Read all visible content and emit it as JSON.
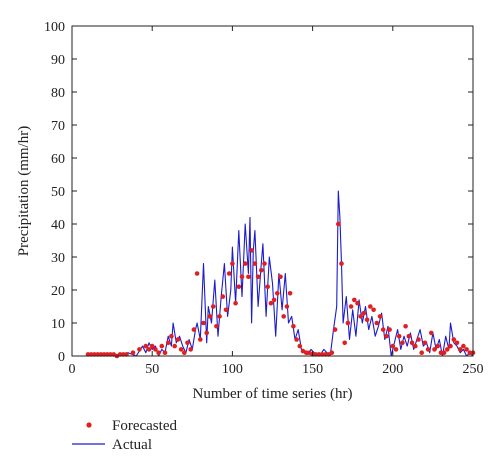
{
  "chart_data": {
    "type": "line",
    "title": "",
    "xlabel": "Number of time series (hr)",
    "ylabel": "Precipitation (mm/hr)",
    "xlim": [
      0,
      250
    ],
    "ylim": [
      0,
      100
    ],
    "xticks": [
      0,
      50,
      100,
      150,
      200,
      250
    ],
    "yticks": [
      0,
      10,
      20,
      30,
      40,
      50,
      60,
      70,
      80,
      90,
      100
    ],
    "grid": false,
    "legend_position": "bottom-left, outside plot",
    "series": [
      {
        "name": "Actual",
        "style": "line",
        "color": "#1c1ccc",
        "x": [
          0,
          5,
          10,
          15,
          20,
          25,
          30,
          35,
          40,
          44,
          46,
          48,
          50,
          52,
          54,
          56,
          58,
          60,
          62,
          63,
          65,
          67,
          69,
          71,
          73,
          75,
          77,
          78,
          80,
          82,
          84,
          85,
          87,
          89,
          91,
          93,
          95,
          97,
          99,
          100,
          102,
          104,
          106,
          108,
          110,
          111,
          112,
          113,
          114,
          116,
          118,
          119,
          121,
          123,
          125,
          127,
          129,
          131,
          133,
          135,
          137,
          139,
          141,
          143,
          145,
          147,
          149,
          151,
          153,
          155,
          157,
          159,
          161,
          163,
          165,
          166,
          167,
          168,
          169,
          171,
          173,
          175,
          177,
          179,
          181,
          183,
          185,
          187,
          189,
          191,
          193,
          195,
          197,
          199,
          201,
          203,
          205,
          207,
          209,
          211,
          213,
          215,
          217,
          219,
          221,
          223,
          225,
          227,
          229,
          231,
          233,
          235,
          236,
          238,
          240,
          242,
          244,
          246,
          248,
          250
        ],
        "y": [
          0,
          0,
          0,
          0.5,
          0,
          0,
          0.5,
          1,
          0,
          3,
          1,
          4,
          2,
          3,
          0,
          2,
          1,
          6,
          3,
          10,
          4,
          6,
          3,
          1,
          5,
          2,
          8,
          10,
          5,
          28,
          4,
          15,
          10,
          23,
          6,
          18,
          28,
          12,
          20,
          33,
          16,
          38,
          18,
          40,
          25,
          42,
          10,
          32,
          38,
          15,
          28,
          34,
          12,
          30,
          22,
          6,
          25,
          14,
          25,
          10,
          12,
          5,
          8,
          2,
          1,
          0.5,
          2,
          1,
          0,
          0.5,
          2,
          1,
          0,
          8,
          15,
          50,
          42,
          28,
          10,
          18,
          5,
          14,
          6,
          17,
          10,
          15,
          8,
          12,
          6,
          9,
          13,
          5,
          9,
          0,
          4,
          8,
          2,
          6,
          3,
          7,
          2,
          5,
          8,
          3,
          4,
          1,
          7,
          2,
          5,
          0,
          6,
          2,
          10,
          4,
          3,
          1,
          2,
          0,
          1,
          0
        ]
      },
      {
        "name": "Forecasted",
        "style": "markers",
        "color": "#e02020",
        "x": [
          10,
          12,
          14,
          16,
          18,
          20,
          22,
          24,
          26,
          28,
          30,
          32,
          34,
          38,
          42,
          46,
          48,
          50,
          52,
          54,
          56,
          58,
          60,
          62,
          64,
          66,
          68,
          70,
          72,
          74,
          76,
          78,
          80,
          82,
          84,
          86,
          88,
          90,
          92,
          94,
          96,
          98,
          100,
          102,
          104,
          106,
          108,
          110,
          112,
          114,
          116,
          118,
          120,
          122,
          124,
          126,
          128,
          130,
          132,
          134,
          136,
          138,
          140,
          142,
          144,
          146,
          148,
          150,
          152,
          154,
          156,
          158,
          160,
          162,
          164,
          166,
          168,
          170,
          172,
          174,
          176,
          178,
          180,
          182,
          184,
          186,
          188,
          190,
          192,
          194,
          196,
          198,
          200,
          202,
          204,
          206,
          208,
          210,
          212,
          214,
          216,
          218,
          220,
          222,
          224,
          226,
          228,
          230,
          232,
          234,
          236,
          238,
          240,
          242,
          244,
          246,
          248,
          250
        ],
        "y": [
          0.5,
          0.5,
          0.5,
          0.5,
          0.5,
          0.5,
          0.5,
          0.5,
          0.5,
          0,
          0.5,
          0.5,
          0.5,
          1,
          2,
          3,
          2,
          3,
          2,
          1,
          3,
          1,
          4,
          6,
          3,
          5,
          2,
          1,
          4,
          2,
          8,
          25,
          5,
          10,
          7,
          12,
          15,
          9,
          12,
          18,
          14,
          25,
          28,
          16,
          21,
          24,
          28,
          24,
          32,
          28,
          24,
          26,
          28,
          21,
          16,
          17,
          19,
          24,
          12,
          15,
          19,
          9,
          5,
          3,
          1.5,
          1,
          1,
          0.5,
          0.5,
          0.5,
          0.5,
          0.5,
          0.5,
          1,
          8,
          40,
          28,
          4,
          10,
          15,
          17,
          16,
          12,
          13,
          11,
          15,
          14,
          10,
          12,
          8,
          6,
          8,
          3,
          2,
          6,
          4,
          9,
          6,
          4,
          3,
          5,
          1,
          4,
          2,
          7,
          2,
          3,
          1,
          1,
          2,
          3,
          5,
          4,
          2,
          3,
          2,
          1,
          1
        ]
      }
    ],
    "legend": [
      {
        "label": "Forecasted",
        "marker": "dot",
        "color": "#e02020"
      },
      {
        "label": "Actual",
        "marker": "line",
        "color": "#1c1ccc"
      }
    ]
  }
}
